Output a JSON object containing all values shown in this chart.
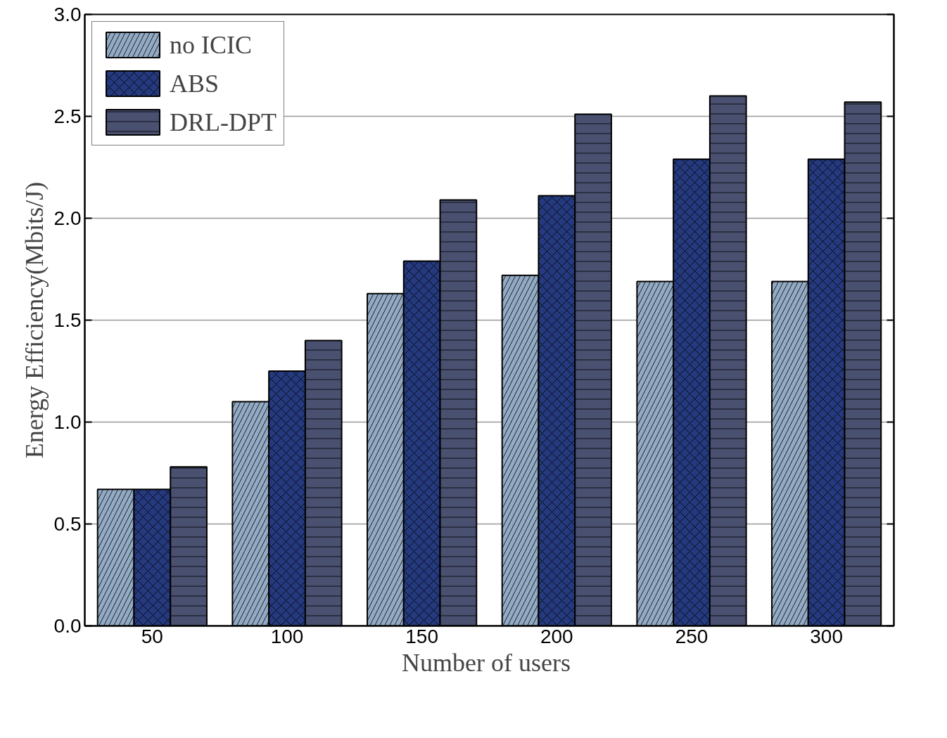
{
  "chart_data": {
    "type": "bar",
    "xlabel": "Number of  users",
    "ylabel": "Energy Efficiency(Mbits/J)",
    "categories": [
      "50",
      "100",
      "150",
      "200",
      "250",
      "300"
    ],
    "series": [
      {
        "name": "no ICIC",
        "color": "#93aac4",
        "values": [
          0.67,
          1.1,
          1.63,
          1.72,
          1.69,
          1.69
        ]
      },
      {
        "name": "ABS",
        "color": "#253a7e",
        "values": [
          0.67,
          1.25,
          1.79,
          2.11,
          2.29,
          2.29
        ]
      },
      {
        "name": "DRL-DPT",
        "color": "#4a5070",
        "values": [
          0.78,
          1.4,
          2.09,
          2.51,
          2.6,
          2.57
        ]
      }
    ],
    "ylim": [
      0,
      3.0
    ],
    "yticks": [
      {
        "value": 0,
        "label": "0.0"
      },
      0.5,
      {
        "value": 1,
        "label": "1.0"
      },
      1.5,
      {
        "value": 2,
        "label": "2.0"
      },
      2.5,
      {
        "value": 3,
        "label": "3.0"
      }
    ],
    "grid": "y",
    "legend": "top left"
  }
}
